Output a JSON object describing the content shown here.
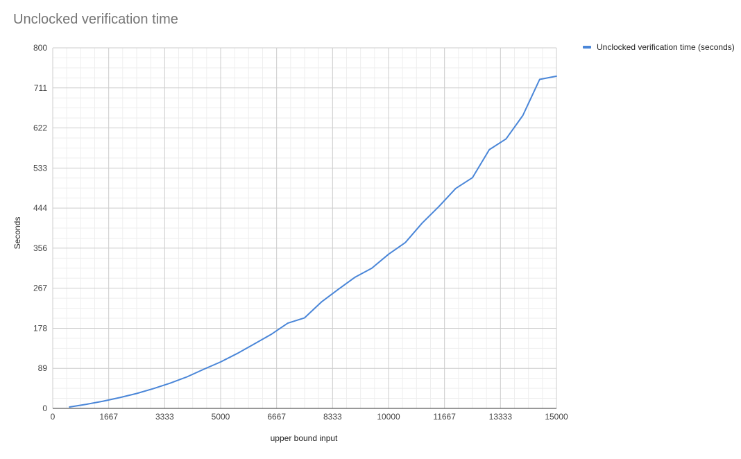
{
  "chart_data": {
    "type": "line",
    "title": "Unclocked verification time",
    "xlabel": "upper bound input",
    "ylabel": "Seconds",
    "xlim": [
      0,
      15000
    ],
    "ylim": [
      0,
      800
    ],
    "x_ticks": [
      "0",
      "1667",
      "3333",
      "5000",
      "6667",
      "8333",
      "10000",
      "11667",
      "13333",
      "15000"
    ],
    "y_ticks": [
      "0",
      "89",
      "178",
      "267",
      "356",
      "444",
      "533",
      "622",
      "711",
      "800"
    ],
    "grid": true,
    "legend_position": "right",
    "series": [
      {
        "name": "Unclocked verification time (seconds)",
        "color": "#4a86d8",
        "x": [
          500,
          1000,
          1500,
          2000,
          2500,
          3000,
          3500,
          4000,
          4500,
          5000,
          5500,
          6000,
          6500,
          7000,
          7500,
          8000,
          8500,
          9000,
          9500,
          10000,
          10500,
          11000,
          11500,
          12000,
          12500,
          13000,
          13500,
          14000,
          14500,
          15000
        ],
        "y": [
          3,
          9,
          16,
          24,
          33,
          44,
          56,
          70,
          87,
          103,
          122,
          143,
          164,
          189,
          201,
          236,
          264,
          291,
          311,
          342,
          368,
          411,
          448,
          488,
          512,
          574,
          598,
          650,
          730,
          737
        ]
      }
    ]
  }
}
